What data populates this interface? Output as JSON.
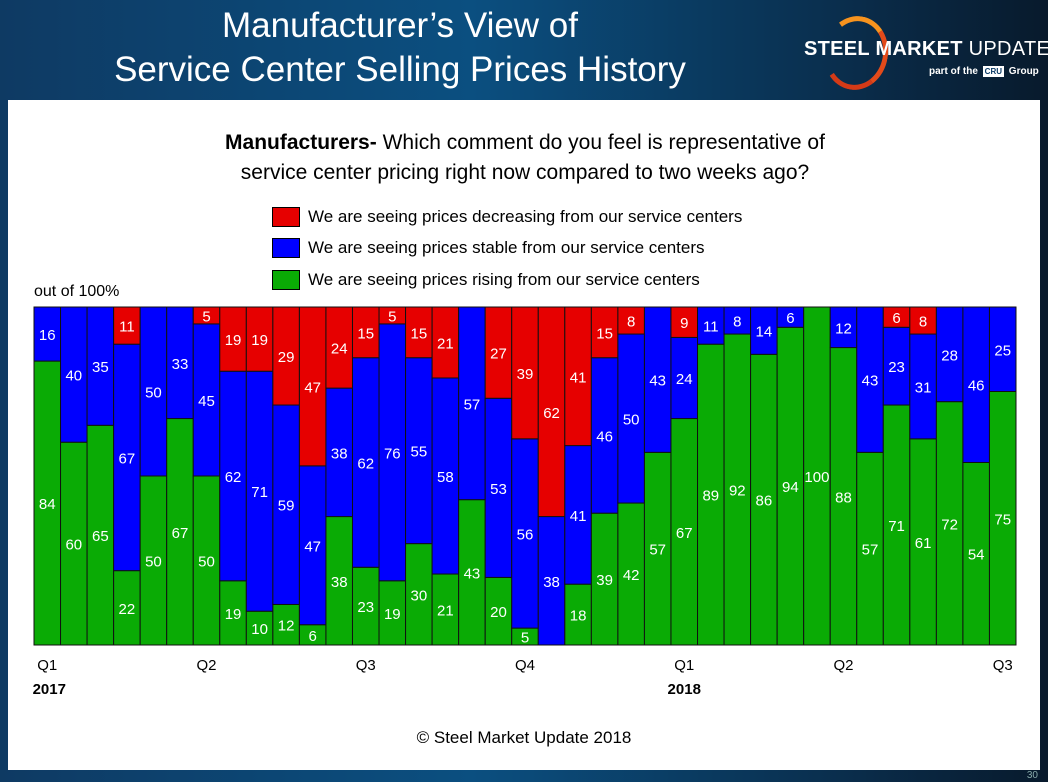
{
  "header": {
    "title_line1": "Manufacturer’s View of",
    "title_line2": "Service Center Selling Prices History",
    "logo_text": "STEEL MARKET UPDATE",
    "logo_sub": "part of the CRU Group"
  },
  "question": {
    "bold": "Manufacturers-",
    "text_line1": " Which comment do you feel is representative of",
    "text_line2": "service center pricing right now compared to two weeks ago?"
  },
  "footer": {
    "copyright": "© Steel Market Update 2018",
    "page_number": "30"
  },
  "colors": {
    "decreasing": "#e60000",
    "stable": "#0000ff",
    "rising": "#0aab05"
  },
  "chart_data": {
    "type": "bar",
    "stacked": true,
    "ylabel": "out of 100%",
    "ylim": [
      0,
      100
    ],
    "grid": false,
    "legend_position": "top",
    "x_tick_labels": [
      {
        "index": 0,
        "label": "Q1",
        "year": "2017"
      },
      {
        "index": 6,
        "label": "Q2"
      },
      {
        "index": 12,
        "label": "Q3"
      },
      {
        "index": 18,
        "label": "Q4"
      },
      {
        "index": 24,
        "label": "Q1",
        "year": "2018"
      },
      {
        "index": 30,
        "label": "Q2"
      },
      {
        "index": 36,
        "label": "Q3"
      }
    ],
    "series": [
      {
        "name": "We are seeing prices rising from our service centers",
        "key": "rising",
        "values": [
          84,
          60,
          65,
          22,
          50,
          67,
          50,
          19,
          10,
          12,
          6,
          38,
          23,
          19,
          30,
          21,
          43,
          20,
          5,
          0,
          18,
          39,
          42,
          57,
          67,
          89,
          92,
          86,
          94,
          100,
          88,
          57,
          71,
          61,
          72,
          54,
          75
        ]
      },
      {
        "name": "We are seeing prices stable from our service centers",
        "key": "stable",
        "values": [
          16,
          40,
          35,
          67,
          50,
          33,
          45,
          62,
          71,
          59,
          47,
          38,
          62,
          76,
          55,
          58,
          57,
          53,
          56,
          38,
          41,
          46,
          50,
          43,
          24,
          11,
          8,
          14,
          6,
          0,
          12,
          43,
          23,
          31,
          28,
          46,
          25
        ]
      },
      {
        "name": "We are seeing prices decreasing from our service centers",
        "key": "decreasing",
        "values": [
          0,
          0,
          0,
          11,
          0,
          0,
          5,
          19,
          19,
          29,
          47,
          24,
          15,
          5,
          15,
          21,
          0,
          27,
          39,
          62,
          41,
          15,
          8,
          0,
          9,
          0,
          0,
          0,
          0,
          0,
          0,
          0,
          6,
          8,
          0,
          0,
          0
        ]
      }
    ],
    "legend_order": [
      "decreasing",
      "stable",
      "rising"
    ]
  }
}
